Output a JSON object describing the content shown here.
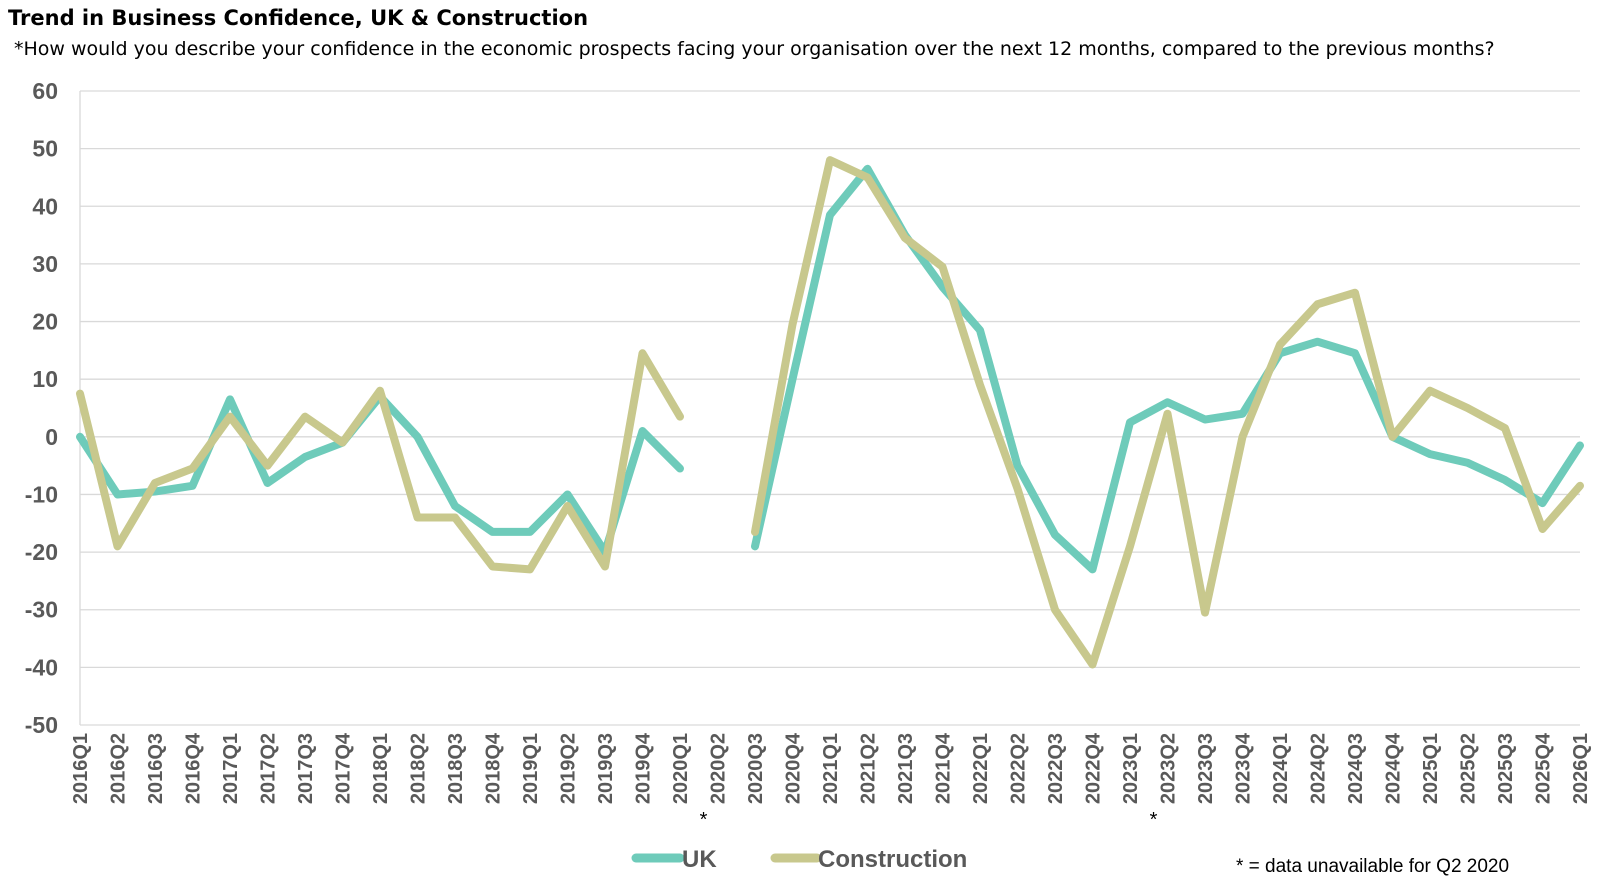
{
  "chart_data": {
    "type": "line",
    "title": "Trend in Business Confidence, UK & Construction",
    "subtitle": "*How would you describe your confidence in the economic prospects facing your organisation over the next 12 months, compared to the previous months?",
    "xlabel": "",
    "ylabel": "",
    "ylim": [
      -50,
      60
    ],
    "yticks": [
      "60",
      "50",
      "40",
      "30",
      "20",
      "10",
      "0",
      "-10",
      "-20",
      "-30",
      "-40",
      "-50"
    ],
    "grid": true,
    "legend_position": "bottom",
    "categories": [
      "2016Q1",
      "2016Q2",
      "2016Q3",
      "2016Q4",
      "2017Q1",
      "2017Q2",
      "2017Q3",
      "2017Q4",
      "2018Q1",
      "2018Q2",
      "2018Q3",
      "2018Q4",
      "2019Q1",
      "2019Q2",
      "2019Q3",
      "2019Q4",
      "2020Q1",
      "2020Q2",
      "2020Q3",
      "2020Q4",
      "2021Q1",
      "2021Q2",
      "2021Q3",
      "2021Q4",
      "2022Q1",
      "2022Q2",
      "2022Q3",
      "2022Q4",
      "2023Q1",
      "2023Q2",
      "2023Q3",
      "2023Q4",
      "2024Q1",
      "2024Q2",
      "2024Q3",
      "2024Q4",
      "2025Q1",
      "2025Q2",
      "2025Q3",
      "2025Q4",
      "2026Q1"
    ],
    "series": [
      {
        "name": "UK",
        "color": "#6ECBBA",
        "values": [
          0,
          -10,
          -9.5,
          -8.5,
          6.5,
          -8,
          -3.5,
          -1,
          7,
          0,
          -12,
          -16.5,
          -16.5,
          -10,
          -20,
          1,
          -5.5,
          null,
          -19,
          10,
          38.5,
          46.5,
          35,
          26,
          18.5,
          -5,
          -17,
          -23,
          2.5,
          6,
          3,
          4,
          14.5,
          16.5,
          14.5,
          0,
          -3,
          -4.5,
          -7.5,
          -11.5,
          -1.5
        ]
      },
      {
        "name": "Construction",
        "color": "#C8C88D",
        "values": [
          7.5,
          -19,
          -8,
          -5.5,
          3.5,
          -5,
          3.5,
          -1,
          8,
          -14,
          -14,
          -22.5,
          -23,
          -12,
          -22.5,
          14.5,
          3.5,
          null,
          -16.5,
          19.5,
          48,
          45,
          34.5,
          29.5,
          9,
          -9,
          -30,
          -39.5,
          -19,
          4,
          -30.5,
          0,
          16,
          23,
          25,
          0,
          8,
          5,
          1.5,
          -16,
          -8.5
        ]
      }
    ],
    "annotations": [
      {
        "text": "*",
        "category": "2020Q2"
      },
      {
        "text": "*",
        "category": "2023Q2"
      }
    ],
    "footnote": "* = data unavailable for Q2 2020"
  }
}
